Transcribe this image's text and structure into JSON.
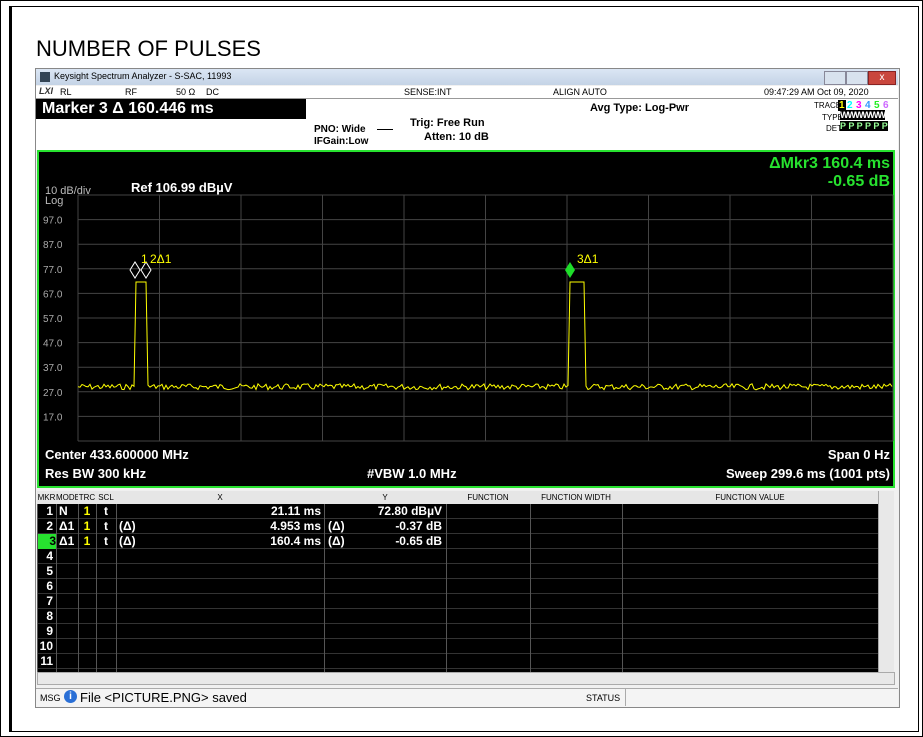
{
  "title": "NUMBER OF PULSES",
  "window": {
    "title": "Keysight Spectrum Analyzer - S-SAC, 11993"
  },
  "status_row": {
    "rl": "RL",
    "rf": "RF",
    "impedance": "50 Ω",
    "coupling": "DC",
    "sense": "SENSE:INT",
    "align": "ALIGN AUTO",
    "datetime": "09:47:29 AM Oct 09, 2020"
  },
  "header": {
    "marker": "Marker 3 Δ 160.446 ms",
    "pno": "PNO: Wide",
    "ifgain": "IFGain:Low",
    "trig": "Trig: Free Run",
    "atten": "Atten: 10 dB",
    "avg": "Avg Type: Log-Pwr",
    "trace_label": "TRACE",
    "trace_nums": [
      "1",
      "2",
      "3",
      "4",
      "5",
      "6"
    ],
    "type_label": "TYPE",
    "type_vals": "WWWWWW",
    "det_label": "DET",
    "det_vals": "P P P P P P"
  },
  "graph": {
    "delta_marker": "ΔMkr3 160.4 ms",
    "delta_value": "-0.65 dB",
    "scale": "10 dB/div",
    "scale_type": "Log",
    "ref": "Ref 106.99 dBµV",
    "y_labels": [
      "97.0",
      "87.0",
      "77.0",
      "67.0",
      "57.0",
      "47.0",
      "37.0",
      "27.0",
      "17.0"
    ],
    "markers": [
      "1",
      "2Δ1",
      "3Δ1"
    ],
    "center": "Center 433.600000 MHz",
    "span": "Span 0 Hz",
    "res_bw": "Res BW 300 kHz",
    "vbw": "#VBW 1.0 MHz",
    "sweep": "Sweep  299.6 ms (1001 pts)"
  },
  "table": {
    "headers": [
      "MKR",
      "MODE",
      "TRC",
      "SCL",
      "X",
      "Y",
      "FUNCTION",
      "FUNCTION WIDTH",
      "FUNCTION VALUE"
    ],
    "rows": [
      {
        "mkr": "1",
        "mode": "N",
        "trc": "1",
        "scl": "t",
        "x": "21.11 ms",
        "y": "72.80 dBµV"
      },
      {
        "mkr": "2",
        "mode": "Δ1",
        "trc": "1",
        "scl": "t",
        "x_ref": "(Δ)",
        "x": "4.953 ms",
        "y_ref": "(Δ)",
        "y": "-0.37 dB"
      },
      {
        "mkr": "3",
        "mode": "Δ1",
        "trc": "1",
        "scl": "t",
        "x_ref": "(Δ)",
        "x": "160.4 ms",
        "y_ref": "(Δ)",
        "y": "-0.65 dB"
      },
      {
        "mkr": "4"
      },
      {
        "mkr": "5"
      },
      {
        "mkr": "6"
      },
      {
        "mkr": "7"
      },
      {
        "mkr": "8"
      },
      {
        "mkr": "9"
      },
      {
        "mkr": "10"
      },
      {
        "mkr": "11"
      }
    ]
  },
  "status_bar": {
    "msg": "MSG",
    "message": "File <PICTURE.PNG> saved",
    "status": "STATUS"
  }
}
